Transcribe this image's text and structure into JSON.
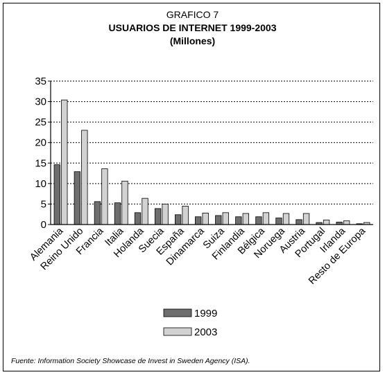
{
  "header": {
    "label": "GRAFICO 7",
    "title": "USUARIOS DE INTERNET 1999-2003",
    "subtitle": "(Millones)"
  },
  "source": "Fuente: Information Society Showcase de Invest in Sweden Agency (ISA).",
  "chart_data": {
    "type": "bar",
    "title": "USUARIOS DE INTERNET 1999-2003",
    "subtitle": "(Millones)",
    "xlabel": "",
    "ylabel": "",
    "ylim": [
      0,
      35
    ],
    "yticks": [
      0,
      5,
      10,
      15,
      20,
      25,
      30,
      35
    ],
    "grid": true,
    "legend_position": "bottom",
    "categories": [
      "Alemania",
      "Reino Unido",
      "Francia",
      "Italia",
      "Holanda",
      "Suecia",
      "España",
      "Dinamarca",
      "Suiza",
      "Finlandia",
      "Bélgica",
      "Noruega",
      "Austria",
      "Portugal",
      "Irlanda",
      "Resto de Europa"
    ],
    "series": [
      {
        "name": "1999",
        "color": "#6e6e6e",
        "values": [
          14.6,
          12.9,
          5.6,
          5.3,
          2.9,
          3.9,
          2.4,
          1.9,
          2.2,
          1.9,
          1.9,
          1.6,
          1.2,
          0.5,
          0.6,
          0.2
        ]
      },
      {
        "name": "2003",
        "color": "#d2d2d2",
        "values": [
          30.4,
          23.0,
          13.6,
          10.6,
          6.4,
          5.0,
          4.5,
          2.8,
          2.9,
          2.7,
          2.9,
          2.7,
          2.7,
          1.1,
          0.9,
          0.5
        ]
      }
    ]
  }
}
